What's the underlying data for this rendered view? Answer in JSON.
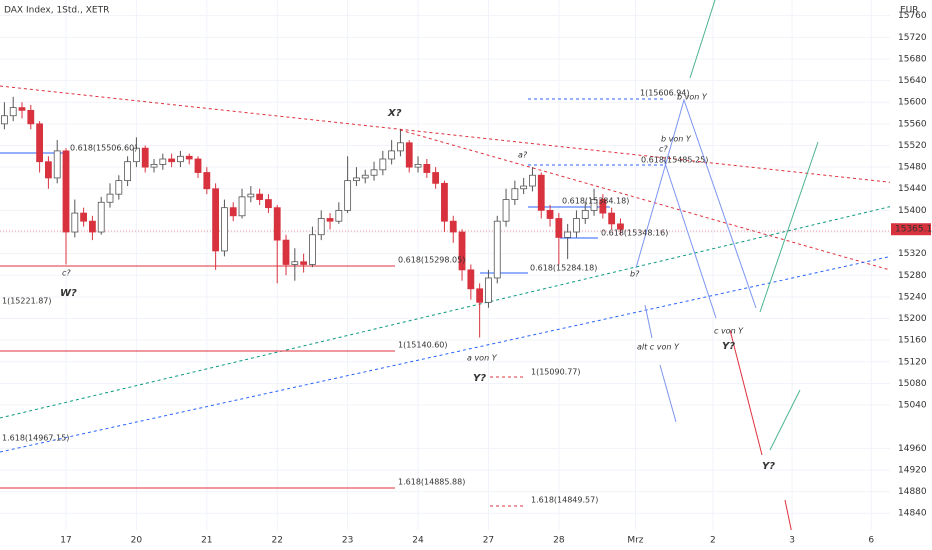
{
  "chart_data": {
    "type": "candlestick",
    "title": "DAX Index, 1Std., XETR",
    "currency": "EUR",
    "up_color": "#ffffff",
    "down_color": "#d8323e",
    "grid": true,
    "xlim": [
      -0.5,
      100.4
    ],
    "xticks": [
      {
        "value": 7,
        "label": "17"
      },
      {
        "value": 15,
        "label": "20"
      },
      {
        "value": 23,
        "label": "21"
      },
      {
        "value": 31,
        "label": "22"
      },
      {
        "value": 39,
        "label": "23"
      },
      {
        "value": 47,
        "label": "24"
      },
      {
        "value": 55,
        "label": "27"
      },
      {
        "value": 63,
        "label": "28"
      },
      {
        "value": 71.7,
        "label": "Mrz"
      },
      {
        "value": 80.5,
        "label": "2"
      },
      {
        "value": 89.5,
        "label": "3"
      },
      {
        "value": 98.5,
        "label": "6"
      }
    ],
    "ylim": [
      14809,
      15789
    ],
    "yticks": [
      14840,
      14880,
      14920,
      14960,
      15040,
      15080,
      15120,
      15160,
      15200,
      15240,
      15280,
      15320,
      15360,
      15400,
      15440,
      15480,
      15520,
      15560,
      15600,
      15640,
      15680,
      15720,
      15760
    ],
    "open": [
      15560,
      15575,
      15590,
      15585,
      15560,
      15490,
      15460,
      15510,
      15360,
      15395,
      15380,
      15360,
      15415,
      15430,
      15455,
      15490,
      15515,
      15480,
      15485,
      15495,
      15490,
      15500,
      15495,
      15470,
      15440,
      15325,
      15405,
      15390,
      15425,
      15430,
      15420,
      15405,
      15345,
      15300,
      15305,
      15300,
      15355,
      15385,
      15380,
      15400,
      15455,
      15460,
      15465,
      15475,
      15495,
      15510,
      15525,
      15480,
      15485,
      15470,
      15450,
      15380,
      15360,
      15290,
      15255,
      15230,
      15275,
      15380,
      15420,
      15440,
      15445,
      15465,
      15400,
      15385,
      15350,
      15360,
      15385,
      15400,
      15420,
      15395,
      15375
    ],
    "high": [
      15600,
      15610,
      15600,
      15595,
      15565,
      15500,
      15530,
      15515,
      15420,
      15405,
      15390,
      15425,
      15450,
      15465,
      15500,
      15535,
      15520,
      15495,
      15505,
      15505,
      15510,
      15505,
      15500,
      15480,
      15450,
      15420,
      15415,
      15440,
      15445,
      15440,
      15430,
      15410,
      15355,
      15330,
      15320,
      15370,
      15400,
      15395,
      15415,
      15500,
      15480,
      15475,
      15490,
      15510,
      15530,
      15550,
      15530,
      15500,
      15495,
      15480,
      15455,
      15390,
      15365,
      15300,
      15265,
      15290,
      15390,
      15440,
      15455,
      15460,
      15480,
      15470,
      15410,
      15395,
      15375,
      15400,
      15415,
      15440,
      15430,
      15405,
      15385
    ],
    "low": [
      15550,
      15565,
      15570,
      15550,
      15470,
      15440,
      15450,
      15300,
      15350,
      15370,
      15345,
      15355,
      15405,
      15420,
      15445,
      15480,
      15470,
      15470,
      15475,
      15480,
      15480,
      15485,
      15460,
      15430,
      15290,
      15315,
      15380,
      15385,
      15415,
      15410,
      15395,
      15265,
      15280,
      15270,
      15285,
      15295,
      15345,
      15365,
      15375,
      15395,
      15445,
      15450,
      15455,
      15465,
      15485,
      15500,
      15470,
      15470,
      15460,
      15440,
      15360,
      15340,
      15270,
      15235,
      15165,
      15220,
      15265,
      15370,
      15410,
      15430,
      15435,
      15385,
      15370,
      15300,
      15310,
      15350,
      15375,
      15390,
      15385,
      15365,
      15355
    ],
    "close": [
      15575,
      15590,
      15585,
      15560,
      15490,
      15460,
      15510,
      15360,
      15395,
      15380,
      15360,
      15415,
      15430,
      15455,
      15490,
      15515,
      15480,
      15485,
      15495,
      15490,
      15500,
      15495,
      15470,
      15440,
      15325,
      15405,
      15390,
      15425,
      15430,
      15420,
      15405,
      15345,
      15300,
      15305,
      15300,
      15355,
      15385,
      15380,
      15400,
      15455,
      15460,
      15465,
      15475,
      15495,
      15510,
      15525,
      15480,
      15485,
      15470,
      15450,
      15380,
      15360,
      15290,
      15255,
      15230,
      15275,
      15380,
      15420,
      15440,
      15445,
      15465,
      15400,
      15385,
      15350,
      15360,
      15385,
      15400,
      15420,
      15395,
      15375,
      15365.14
    ],
    "annotations": [
      {
        "text": "0.618(15506.60)",
        "color": "#2962ff"
      },
      {
        "text": "c?",
        "color": "#2962ff"
      },
      {
        "text": "W?",
        "color": "#2962ff"
      },
      {
        "text": "1(15221.87)",
        "color": "#e0303c"
      },
      {
        "text": "X?",
        "color": "#2962ff"
      },
      {
        "text": "0.618(15298.05)",
        "color": "#e0303c"
      },
      {
        "text": "1(15140.60)",
        "color": "#e0303c"
      },
      {
        "text": "a von Y",
        "color": "#089981"
      },
      {
        "text": "Y?",
        "color": "#2962ff"
      },
      {
        "text": "1(15090.77)",
        "color": "#e0303c"
      },
      {
        "text": "1.618(14967.15)",
        "color": "#e0303c"
      },
      {
        "text": "1.618(14885.88)",
        "color": "#e0303c"
      },
      {
        "text": "1.618(14849.57)",
        "color": "#e0303c"
      },
      {
        "text": "a?",
        "color": "#e0303c"
      },
      {
        "text": "0.618(15384.18)",
        "color": "#2962ff"
      },
      {
        "text": "0.618(15348.16)",
        "color": "#2962ff"
      },
      {
        "text": "0.618(15284.18)",
        "color": "#2962ff"
      },
      {
        "text": "1(15606.94)",
        "color": "#2962ff"
      },
      {
        "text": "0.618(15485.25)",
        "color": "#2962ff"
      },
      {
        "text": "b von Y",
        "color": "#2962ff"
      },
      {
        "text": "b von Y",
        "color": "#089981"
      },
      {
        "text": "c?",
        "color": "#e0303c"
      },
      {
        "text": "b?",
        "color": "#e0303c"
      },
      {
        "text": "c von Y",
        "color": "#089981"
      },
      {
        "text": "Y?",
        "color": "#2962ff"
      },
      {
        "text": "alt c von Y",
        "color": "#089981"
      },
      {
        "text": "Y?",
        "color": "#2962ff"
      }
    ]
  }
}
